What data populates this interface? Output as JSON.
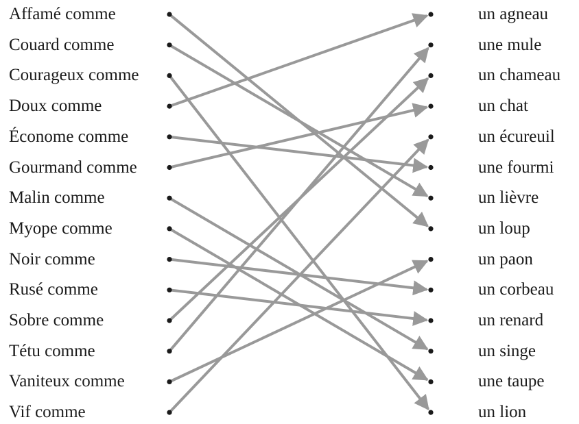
{
  "left_items": [
    "Affamé comme",
    "Couard comme",
    "Courageux comme",
    "Doux comme",
    "Économe comme",
    "Gourmand comme",
    "Malin comme",
    "Myope comme",
    "Noir comme",
    "Rusé comme",
    "Sobre comme",
    "Tétu comme",
    "Vaniteux comme",
    "Vif comme"
  ],
  "right_items": [
    "un agneau",
    "une mule",
    "un chameau",
    "un chat",
    "un écureuil",
    "une fourmi",
    "un lièvre",
    "un loup",
    "un paon",
    "un corbeau",
    "un renard",
    "un singe",
    "une taupe",
    "un lion"
  ],
  "connections": [
    {
      "from": "Affamé comme",
      "to": "un loup"
    },
    {
      "from": "Couard comme",
      "to": "un lièvre"
    },
    {
      "from": "Courageux comme",
      "to": "un lion"
    },
    {
      "from": "Doux comme",
      "to": "un agneau"
    },
    {
      "from": "Économe comme",
      "to": "une fourmi"
    },
    {
      "from": "Gourmand comme",
      "to": "un chat"
    },
    {
      "from": "Malin comme",
      "to": "un singe"
    },
    {
      "from": "Myope comme",
      "to": "une taupe"
    },
    {
      "from": "Noir comme",
      "to": "un corbeau"
    },
    {
      "from": "Rusé comme",
      "to": "un renard"
    },
    {
      "from": "Sobre comme",
      "to": "un chameau"
    },
    {
      "from": "Tétu comme",
      "to": "une mule"
    },
    {
      "from": "Vaniteux comme",
      "to": "un paon"
    },
    {
      "from": "Vif comme",
      "to": "un écureuil"
    }
  ],
  "colors": {
    "arrow": "#999999",
    "dot": "#1a1a1a",
    "text": "#1a1a1a"
  }
}
